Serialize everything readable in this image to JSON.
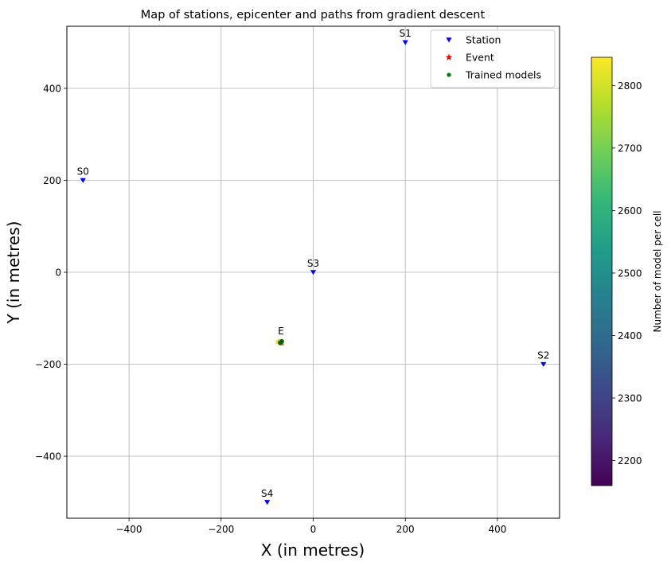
{
  "chart_data": {
    "type": "scatter",
    "title": "Map of stations, epicenter and paths from gradient descent",
    "xlabel": "X (in metres)",
    "ylabel": "Y (in metres)",
    "xlim": [
      -535,
      535
    ],
    "ylim": [
      -535,
      535
    ],
    "xticks": [
      -400,
      -200,
      0,
      200,
      400
    ],
    "yticks": [
      -400,
      -200,
      0,
      200,
      400
    ],
    "xtick_labels": [
      "−400",
      "−200",
      "0",
      "200",
      "400"
    ],
    "ytick_labels": [
      "−400",
      "−200",
      "0",
      "200",
      "400"
    ],
    "grid": true,
    "legend_position": "top-right",
    "legend": [
      {
        "label": "Station",
        "marker": "triangle-down",
        "color": "#0000ff"
      },
      {
        "label": "Event",
        "marker": "star",
        "color": "#ff0000"
      },
      {
        "label": "Trained models",
        "marker": "circle",
        "color": "#008000"
      }
    ],
    "stations": [
      {
        "label": "S0",
        "x": -500,
        "y": 200
      },
      {
        "label": "S1",
        "x": 200,
        "y": 500
      },
      {
        "label": "S2",
        "x": 500,
        "y": -200
      },
      {
        "label": "S3",
        "x": 0,
        "y": 0
      },
      {
        "label": "S4",
        "x": -100,
        "y": -500
      }
    ],
    "event": {
      "label": "E",
      "x": -70,
      "y": -152
    },
    "trained_models": [
      {
        "x": -70,
        "y": -152
      },
      {
        "x": -68,
        "y": -150
      },
      {
        "x": -72,
        "y": -154
      }
    ],
    "heat_cells": [
      {
        "x": -77,
        "y": -152,
        "value": 2820
      },
      {
        "x": -72,
        "y": -150,
        "value": 2750
      },
      {
        "x": -68,
        "y": -155,
        "value": 2700
      }
    ],
    "colorbar": {
      "label": "Number of model per cell",
      "min": 2160,
      "max": 2845,
      "ticks": [
        2200,
        2300,
        2400,
        2500,
        2600,
        2700,
        2800
      ],
      "colormap": [
        "#440154",
        "#482878",
        "#3e4989",
        "#31688e",
        "#26828e",
        "#1f9e89",
        "#35b779",
        "#6ece58",
        "#b5de2b",
        "#fde725"
      ]
    }
  }
}
